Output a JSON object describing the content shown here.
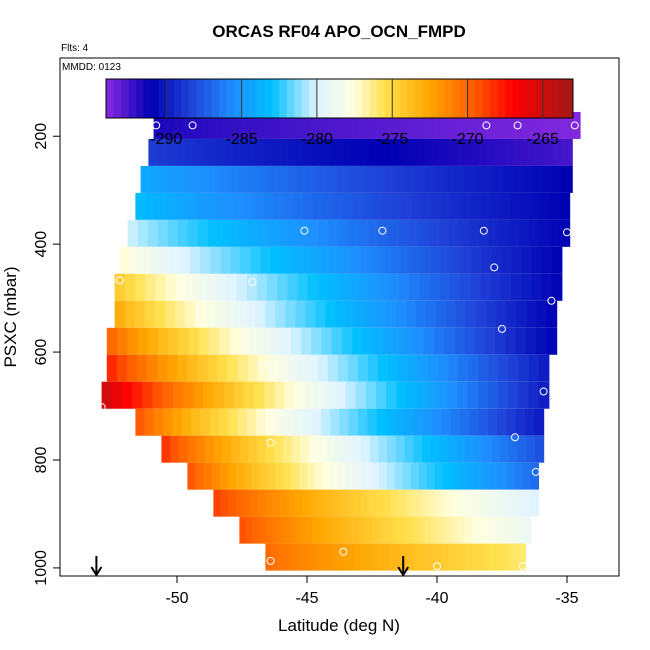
{
  "chart_data": {
    "type": "heatmap",
    "title": "ORCAS RF04 APO_OCN_FMPD",
    "annotations": {
      "flights": "Flts: 4",
      "date": "MMDD: 0123"
    },
    "xlabel": "Latitude (deg N)",
    "ylabel": "PSXC (mbar)",
    "xlim": [
      -54.5,
      -33.0
    ],
    "ylim": [
      1015,
      55
    ],
    "y_reversed": true,
    "x_ticks": [
      -50,
      -45,
      -40,
      -35
    ],
    "x_tick_labels": [
      "-50",
      "-45",
      "-40",
      "-35"
    ],
    "y_ticks": [
      200,
      400,
      600,
      800,
      1000
    ],
    "y_tick_labels": [
      "200",
      "400",
      "600",
      "800",
      "1000"
    ],
    "colorbar": {
      "range": [
        -294,
        -263
      ],
      "ticks": [
        -290,
        -285,
        -280,
        -275,
        -270,
        -265
      ],
      "tick_labels": [
        "-290",
        "-285",
        "-280",
        "-275",
        "-270",
        "-265"
      ],
      "stops": [
        {
          "value": -294,
          "color": "#8b2be2"
        },
        {
          "value": -291,
          "color": "#0000b3"
        },
        {
          "value": -288.5,
          "color": "#1f3fd6"
        },
        {
          "value": -285.5,
          "color": "#1e90ff"
        },
        {
          "value": -283,
          "color": "#00bfff"
        },
        {
          "value": -280,
          "color": "#e0f4ff"
        },
        {
          "value": -277.5,
          "color": "#ffffe0"
        },
        {
          "value": -275.5,
          "color": "#ffe14d"
        },
        {
          "value": -272.5,
          "color": "#ffa500"
        },
        {
          "value": -269.5,
          "color": "#ff5a00"
        },
        {
          "value": -267,
          "color": "#ff0000"
        },
        {
          "value": -263,
          "color": "#a01818"
        }
      ]
    },
    "rows": [
      {
        "p": 180,
        "x0": -50.9,
        "x1": -34.5,
        "v0": -291.5,
        "v1": -293.8
      },
      {
        "p": 230,
        "x0": -51.1,
        "x1": -34.8,
        "v0": -288.5,
        "v1": -292.5
      },
      {
        "p": 280,
        "x0": -51.4,
        "x1": -34.8,
        "v0": -284,
        "v1": -291
      },
      {
        "p": 330,
        "x0": -51.6,
        "x1": -34.9,
        "v0": -283,
        "v1": -291
      },
      {
        "p": 380,
        "x0": -51.9,
        "x1": -34.9,
        "v0": -280,
        "v1": -291
      },
      {
        "p": 430,
        "x0": -52.2,
        "x1": -35.2,
        "v0": -277,
        "v1": -291
      },
      {
        "p": 480,
        "x0": -52.4,
        "x1": -35.2,
        "v0": -274,
        "v1": -291
      },
      {
        "p": 530,
        "x0": -52.4,
        "x1": -35.4,
        "v0": -272.5,
        "v1": -291
      },
      {
        "p": 580,
        "x0": -52.7,
        "x1": -35.4,
        "v0": -269.5,
        "v1": -291
      },
      {
        "p": 630,
        "x0": -52.7,
        "x1": -35.7,
        "v0": -267.5,
        "v1": -290
      },
      {
        "p": 680,
        "x0": -52.9,
        "x1": -35.7,
        "v0": -264.5,
        "v1": -290
      },
      {
        "p": 730,
        "x0": -51.6,
        "x1": -35.9,
        "v0": -269,
        "v1": -290
      },
      {
        "p": 780,
        "x0": -50.6,
        "x1": -35.9,
        "v0": -268,
        "v1": -288
      },
      {
        "p": 830,
        "x0": -49.6,
        "x1": -36.1,
        "v0": -269,
        "v1": -287
      },
      {
        "p": 880,
        "x0": -48.6,
        "x1": -36.1,
        "v0": -268.5,
        "v1": -280
      },
      {
        "p": 930,
        "x0": -47.6,
        "x1": -36.4,
        "v0": -269,
        "v1": -279
      },
      {
        "p": 980,
        "x0": -46.6,
        "x1": -36.6,
        "v0": -270,
        "v1": -276
      }
    ],
    "bins": 44,
    "row_half_height": 25,
    "points": [
      {
        "x": -50.8,
        "y": 180
      },
      {
        "x": -49.4,
        "y": 180
      },
      {
        "x": -38.1,
        "y": 180
      },
      {
        "x": -36.9,
        "y": 180
      },
      {
        "x": -34.7,
        "y": 180
      },
      {
        "x": -45.1,
        "y": 375
      },
      {
        "x": -42.1,
        "y": 375
      },
      {
        "x": -38.2,
        "y": 375
      },
      {
        "x": -35.0,
        "y": 378
      },
      {
        "x": -37.8,
        "y": 443
      },
      {
        "x": -47.1,
        "y": 470
      },
      {
        "x": -35.6,
        "y": 505
      },
      {
        "x": -37.5,
        "y": 557
      },
      {
        "x": -46.7,
        "y": 625
      },
      {
        "x": -35.9,
        "y": 673
      },
      {
        "x": -52.9,
        "y": 702
      },
      {
        "x": -52.2,
        "y": 467
      },
      {
        "x": -46.4,
        "y": 768
      },
      {
        "x": -37.0,
        "y": 758
      },
      {
        "x": -36.2,
        "y": 822
      },
      {
        "x": -43.6,
        "y": 970
      },
      {
        "x": -46.4,
        "y": 987
      },
      {
        "x": -40.0,
        "y": 997
      },
      {
        "x": -36.7,
        "y": 997
      }
    ],
    "arrows": [
      {
        "x": -53.1
      },
      {
        "x": -41.3
      }
    ]
  }
}
